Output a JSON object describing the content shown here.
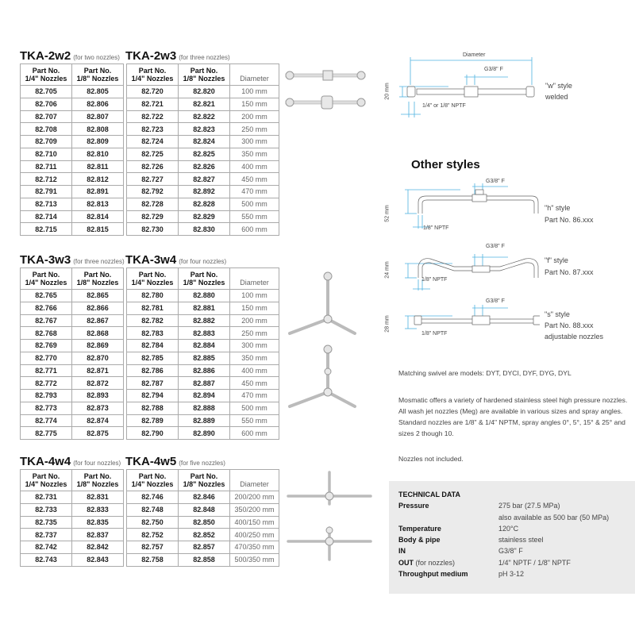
{
  "headers": {
    "col1": [
      "Part No.",
      "1/4\" Nozzles"
    ],
    "col2": [
      "Part No.",
      "1/8\" Nozzles"
    ],
    "diameter": "Diameter"
  },
  "blocks": [
    {
      "left_title": "TKA-2w2",
      "left_sub": "(for two nozzles)",
      "right_title": "TKA-2w3",
      "right_sub": "(for three nozzles)",
      "rows": [
        [
          "82.705",
          "82.805",
          "82.720",
          "82.820",
          "100 mm"
        ],
        [
          "82.706",
          "82.806",
          "82.721",
          "82.821",
          "150 mm"
        ],
        [
          "82.707",
          "82.807",
          "82.722",
          "82.822",
          "200 mm"
        ],
        [
          "82.708",
          "82.808",
          "82.723",
          "82.823",
          "250 mm"
        ],
        [
          "82.709",
          "82.809",
          "82.724",
          "82.824",
          "300 mm"
        ],
        [
          "82.710",
          "82.810",
          "82.725",
          "82.825",
          "350 mm"
        ],
        [
          "82.711",
          "82.811",
          "82.726",
          "82.826",
          "400 mm"
        ],
        [
          "82.712",
          "82.812",
          "82.727",
          "82.827",
          "450 mm"
        ],
        [
          "82.791",
          "82.891",
          "82.792",
          "82.892",
          "470 mm"
        ],
        [
          "82.713",
          "82.813",
          "82.728",
          "82.828",
          "500 mm"
        ],
        [
          "82.714",
          "82.814",
          "82.729",
          "82.829",
          "550 mm"
        ],
        [
          "82.715",
          "82.815",
          "82.730",
          "82.830",
          "600 mm"
        ]
      ]
    },
    {
      "left_title": "TKA-3w3",
      "left_sub": "(for three nozzles)",
      "right_title": "TKA-3w4",
      "right_sub": "(for four nozzles)",
      "rows": [
        [
          "82.765",
          "82.865",
          "82.780",
          "82.880",
          "100 mm"
        ],
        [
          "82.766",
          "82.866",
          "82.781",
          "82.881",
          "150 mm"
        ],
        [
          "82.767",
          "82.867",
          "82.782",
          "82.882",
          "200 mm"
        ],
        [
          "82.768",
          "82.868",
          "82.783",
          "82.883",
          "250 mm"
        ],
        [
          "82.769",
          "82.869",
          "82.784",
          "82.884",
          "300 mm"
        ],
        [
          "82.770",
          "82.870",
          "82.785",
          "82.885",
          "350 mm"
        ],
        [
          "82.771",
          "82.871",
          "82.786",
          "82.886",
          "400 mm"
        ],
        [
          "82.772",
          "82.872",
          "82.787",
          "82.887",
          "450 mm"
        ],
        [
          "82.793",
          "82.893",
          "82.794",
          "82.894",
          "470 mm"
        ],
        [
          "82.773",
          "82.873",
          "82.788",
          "82.888",
          "500 mm"
        ],
        [
          "82.774",
          "82.874",
          "82.789",
          "82.889",
          "550 mm"
        ],
        [
          "82.775",
          "82.875",
          "82.790",
          "82.890",
          "600 mm"
        ]
      ]
    },
    {
      "left_title": "TKA-4w4",
      "left_sub": "(for four nozzles)",
      "right_title": "TKA-4w5",
      "right_sub": "(for five nozzles)",
      "rows": [
        [
          "82.731",
          "82.831",
          "82.746",
          "82.846",
          "200/200 mm"
        ],
        [
          "82.733",
          "82.833",
          "82.748",
          "82.848",
          "350/200 mm"
        ],
        [
          "82.735",
          "82.835",
          "82.750",
          "82.850",
          "400/150 mm"
        ],
        [
          "82.737",
          "82.837",
          "82.752",
          "82.852",
          "400/250 mm"
        ],
        [
          "82.742",
          "82.842",
          "82.757",
          "82.857",
          "470/350 mm"
        ],
        [
          "82.743",
          "82.843",
          "82.758",
          "82.858",
          "500/350 mm"
        ]
      ]
    }
  ],
  "diagrams": {
    "w": {
      "diameter": "Diameter",
      "height": "20 mm",
      "inlet": "G3/8\" F",
      "outlet": "1/4\" or 1/8\" NPTF",
      "label1": "\"w\" style",
      "label2": "welded"
    },
    "other_styles": "Other styles",
    "h": {
      "height": "52 mm",
      "inlet": "G3/8\" F",
      "outlet": "1/8\" NPTF",
      "label1": "\"h\" style",
      "label2": "Part No. 86.xxx"
    },
    "f": {
      "height": "24 mm",
      "inlet": "G3/8\" F",
      "outlet": "1/8\" NPTF",
      "label1": "\"f\" style",
      "label2": "Part No. 87.xxx"
    },
    "s": {
      "height": "28 mm",
      "inlet": "G3/8\" F",
      "outlet": "1/8\" NPTF",
      "label1": "\"s\" style",
      "label2": "Part No. 88.xxx",
      "label3": "adjustable nozzles"
    }
  },
  "text": {
    "swivel": "Matching swivel are models: DYT, DYCI, DYF, DYG, DYL",
    "description": "Mosmatic offers a variety of hardened stainless steel high pressure nozzles. All wash jet nozzles (Meg) are available in various sizes and spray angles. Standard nozzles are 1/8\" & 1/4\" NPTM, spray angles 0°, 5°, 15° & 25° and sizes 2 though 10.",
    "not_included": "Nozzles not included."
  },
  "technical": {
    "title": "TECHNICAL DATA",
    "rows": [
      {
        "key": "Pressure",
        "note": "",
        "value": "275 bar (27.5 MPa)"
      },
      {
        "key": "",
        "note": "",
        "value": "also available as 500 bar (50 MPa)"
      },
      {
        "key": "Temperature",
        "note": "",
        "value": "120°C"
      },
      {
        "key": "Body & pipe",
        "note": "",
        "value": "stainless steel"
      },
      {
        "key": "IN",
        "note": "",
        "value": "G3/8\" F"
      },
      {
        "key": "OUT",
        "note": "(for nozzles)",
        "value": "1/4\" NPTF / 1/8\" NPTF"
      },
      {
        "key": "Throughput medium",
        "note": "",
        "value": "pH 3-12"
      }
    ]
  },
  "colors": {
    "dimension": "#4fb3e0",
    "panel": "#ebebeb"
  }
}
